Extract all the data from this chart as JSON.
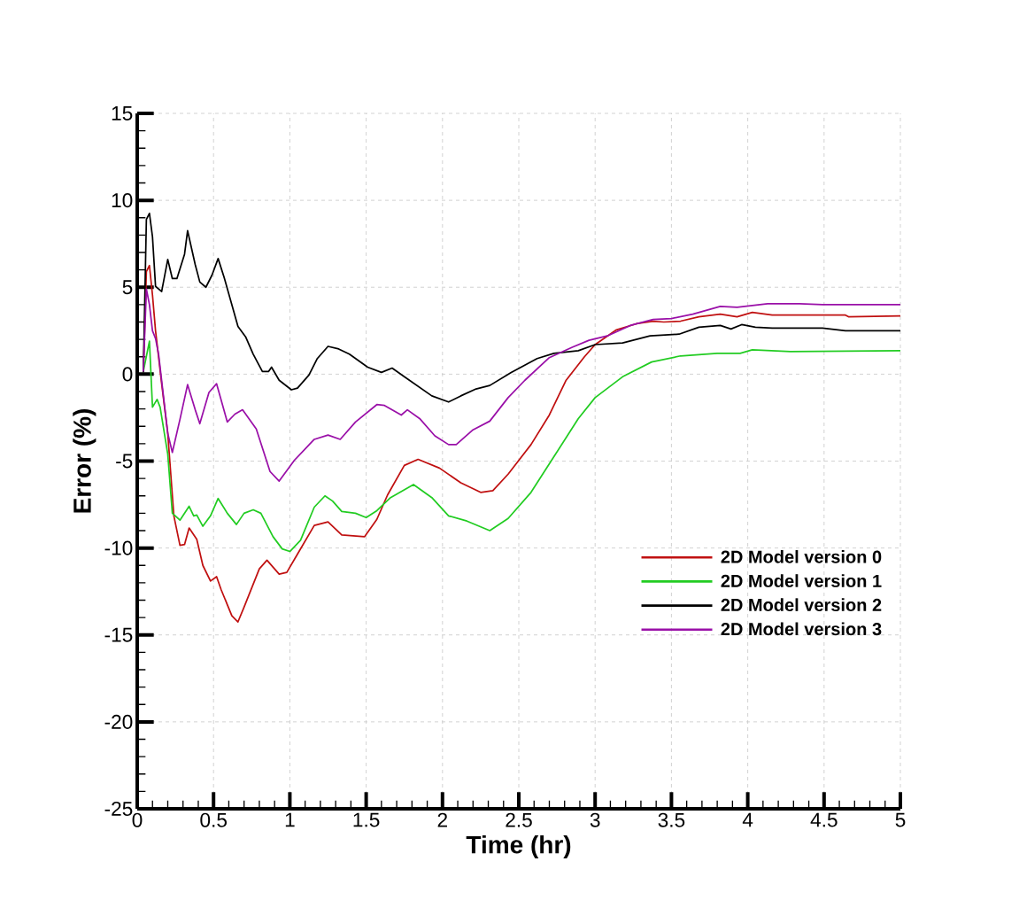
{
  "chart_data": {
    "type": "line",
    "xlabel": "Time (hr)",
    "ylabel": "Error (%)",
    "xlim": [
      0,
      5
    ],
    "ylim": [
      -25,
      15
    ],
    "xticks": [
      0,
      0.5,
      1,
      1.5,
      2,
      2.5,
      3,
      3.5,
      4,
      4.5,
      5
    ],
    "yticks": [
      -25,
      -20,
      -15,
      -10,
      -5,
      0,
      5,
      10,
      15
    ],
    "grid": true,
    "legend": "bottom right",
    "marker": "none",
    "line_style": "solid",
    "series": [
      {
        "name": "2D Model version 0",
        "color": "#c01010",
        "x": [
          0.04,
          0.06,
          0.08,
          0.1,
          0.12,
          0.16,
          0.2,
          0.24,
          0.28,
          0.31,
          0.34,
          0.39,
          0.43,
          0.48,
          0.52,
          0.55,
          0.62,
          0.66,
          0.7,
          0.8,
          0.85,
          0.93,
          0.98,
          1.05,
          1.16,
          1.25,
          1.34,
          1.49,
          1.57,
          1.64,
          1.75,
          1.84,
          1.98,
          2.12,
          2.25,
          2.33,
          2.43,
          2.58,
          2.7,
          2.81,
          2.93,
          3.0,
          3.14,
          3.27,
          3.38,
          3.45,
          3.56,
          3.68,
          3.82,
          3.93,
          4.03,
          4.16,
          4.64,
          4.66,
          5.0
        ],
        "values": [
          0.15,
          5.9,
          6.25,
          4.55,
          2.5,
          -0.55,
          -3.4,
          -8.15,
          -9.85,
          -9.8,
          -8.85,
          -9.5,
          -11.0,
          -11.9,
          -11.65,
          -12.4,
          -13.9,
          -14.25,
          -13.4,
          -11.2,
          -10.7,
          -11.5,
          -11.4,
          -10.35,
          -8.7,
          -8.5,
          -9.25,
          -9.35,
          -8.35,
          -6.95,
          -5.25,
          -4.9,
          -5.4,
          -6.25,
          -6.8,
          -6.7,
          -5.75,
          -4.05,
          -2.35,
          -0.35,
          1.0,
          1.7,
          2.55,
          2.9,
          3.05,
          3.0,
          3.05,
          3.3,
          3.45,
          3.3,
          3.55,
          3.4,
          3.4,
          3.3,
          3.35
        ]
      },
      {
        "name": "2D Model version 1",
        "color": "#22cc22",
        "x": [
          0.04,
          0.08,
          0.1,
          0.13,
          0.15,
          0.2,
          0.23,
          0.28,
          0.34,
          0.37,
          0.39,
          0.43,
          0.48,
          0.53,
          0.59,
          0.65,
          0.7,
          0.76,
          0.81,
          0.89,
          0.95,
          1.0,
          1.07,
          1.16,
          1.23,
          1.28,
          1.34,
          1.43,
          1.5,
          1.57,
          1.66,
          1.81,
          1.93,
          2.04,
          2.16,
          2.31,
          2.43,
          2.58,
          2.73,
          2.89,
          3.0,
          3.18,
          3.37,
          3.56,
          3.8,
          3.95,
          4.03,
          4.28,
          5.0
        ],
        "values": [
          0.15,
          1.9,
          -1.9,
          -1.45,
          -1.9,
          -4.6,
          -8.0,
          -8.4,
          -7.6,
          -8.15,
          -8.1,
          -8.75,
          -8.15,
          -7.15,
          -8.0,
          -8.65,
          -8.0,
          -7.8,
          -8.0,
          -9.35,
          -10.05,
          -10.2,
          -9.55,
          -7.65,
          -7.0,
          -7.3,
          -7.9,
          -8.0,
          -8.25,
          -7.85,
          -7.1,
          -6.35,
          -7.1,
          -8.15,
          -8.45,
          -9.0,
          -8.3,
          -6.8,
          -4.75,
          -2.55,
          -1.35,
          -0.15,
          0.7,
          1.05,
          1.2,
          1.2,
          1.4,
          1.3,
          1.35
        ]
      },
      {
        "name": "2D Model version 2",
        "color": "#000000",
        "x": [
          0.04,
          0.06,
          0.08,
          0.1,
          0.12,
          0.16,
          0.2,
          0.23,
          0.26,
          0.31,
          0.33,
          0.38,
          0.41,
          0.45,
          0.49,
          0.53,
          0.57,
          0.66,
          0.71,
          0.76,
          0.82,
          0.86,
          0.88,
          0.93,
          1.01,
          1.05,
          1.125,
          1.18,
          1.25,
          1.32,
          1.39,
          1.51,
          1.6,
          1.67,
          1.75,
          1.93,
          2.04,
          2.12,
          2.22,
          2.31,
          2.45,
          2.62,
          2.73,
          2.89,
          3.0,
          3.18,
          3.36,
          3.55,
          3.68,
          3.82,
          3.89,
          3.96,
          4.05,
          4.16,
          4.49,
          4.64,
          5.0
        ],
        "values": [
          0.1,
          8.9,
          9.25,
          7.9,
          5.05,
          4.75,
          6.6,
          5.5,
          5.5,
          6.9,
          8.25,
          6.3,
          5.3,
          5.0,
          5.7,
          6.65,
          5.55,
          2.75,
          2.15,
          1.15,
          0.15,
          0.15,
          0.4,
          -0.35,
          -0.9,
          -0.8,
          -0.05,
          0.9,
          1.6,
          1.45,
          1.15,
          0.4,
          0.1,
          0.35,
          -0.15,
          -1.25,
          -1.6,
          -1.25,
          -0.85,
          -0.65,
          0.1,
          0.9,
          1.2,
          1.35,
          1.7,
          1.8,
          2.2,
          2.3,
          2.7,
          2.8,
          2.6,
          2.85,
          2.7,
          2.65,
          2.65,
          2.5,
          2.5
        ]
      },
      {
        "name": "2D Model version 3",
        "color": "#9a10a8",
        "x": [
          0.04,
          0.06,
          0.08,
          0.1,
          0.12,
          0.14,
          0.2,
          0.23,
          0.28,
          0.33,
          0.38,
          0.41,
          0.47,
          0.52,
          0.59,
          0.64,
          0.69,
          0.78,
          0.87,
          0.93,
          1.03,
          1.16,
          1.25,
          1.33,
          1.43,
          1.57,
          1.62,
          1.73,
          1.77,
          1.85,
          1.95,
          2.04,
          2.09,
          2.2,
          2.31,
          2.43,
          2.54,
          2.7,
          2.85,
          2.96,
          3.08,
          3.23,
          3.38,
          3.5,
          3.64,
          3.82,
          3.93,
          4.13,
          4.34,
          4.49,
          5.0
        ],
        "values": [
          0.15,
          4.9,
          4.0,
          2.5,
          2.05,
          1.15,
          -3.4,
          -4.5,
          -2.6,
          -0.6,
          -2.05,
          -2.85,
          -1.05,
          -0.55,
          -2.75,
          -2.3,
          -2.05,
          -3.15,
          -5.6,
          -6.15,
          -4.95,
          -3.75,
          -3.5,
          -3.75,
          -2.75,
          -1.75,
          -1.8,
          -2.35,
          -2.05,
          -2.55,
          -3.55,
          -4.05,
          -4.05,
          -3.2,
          -2.7,
          -1.35,
          -0.35,
          0.95,
          1.55,
          1.95,
          2.2,
          2.8,
          3.15,
          3.2,
          3.45,
          3.9,
          3.85,
          4.05,
          4.05,
          4.0,
          4.0
        ]
      }
    ]
  }
}
